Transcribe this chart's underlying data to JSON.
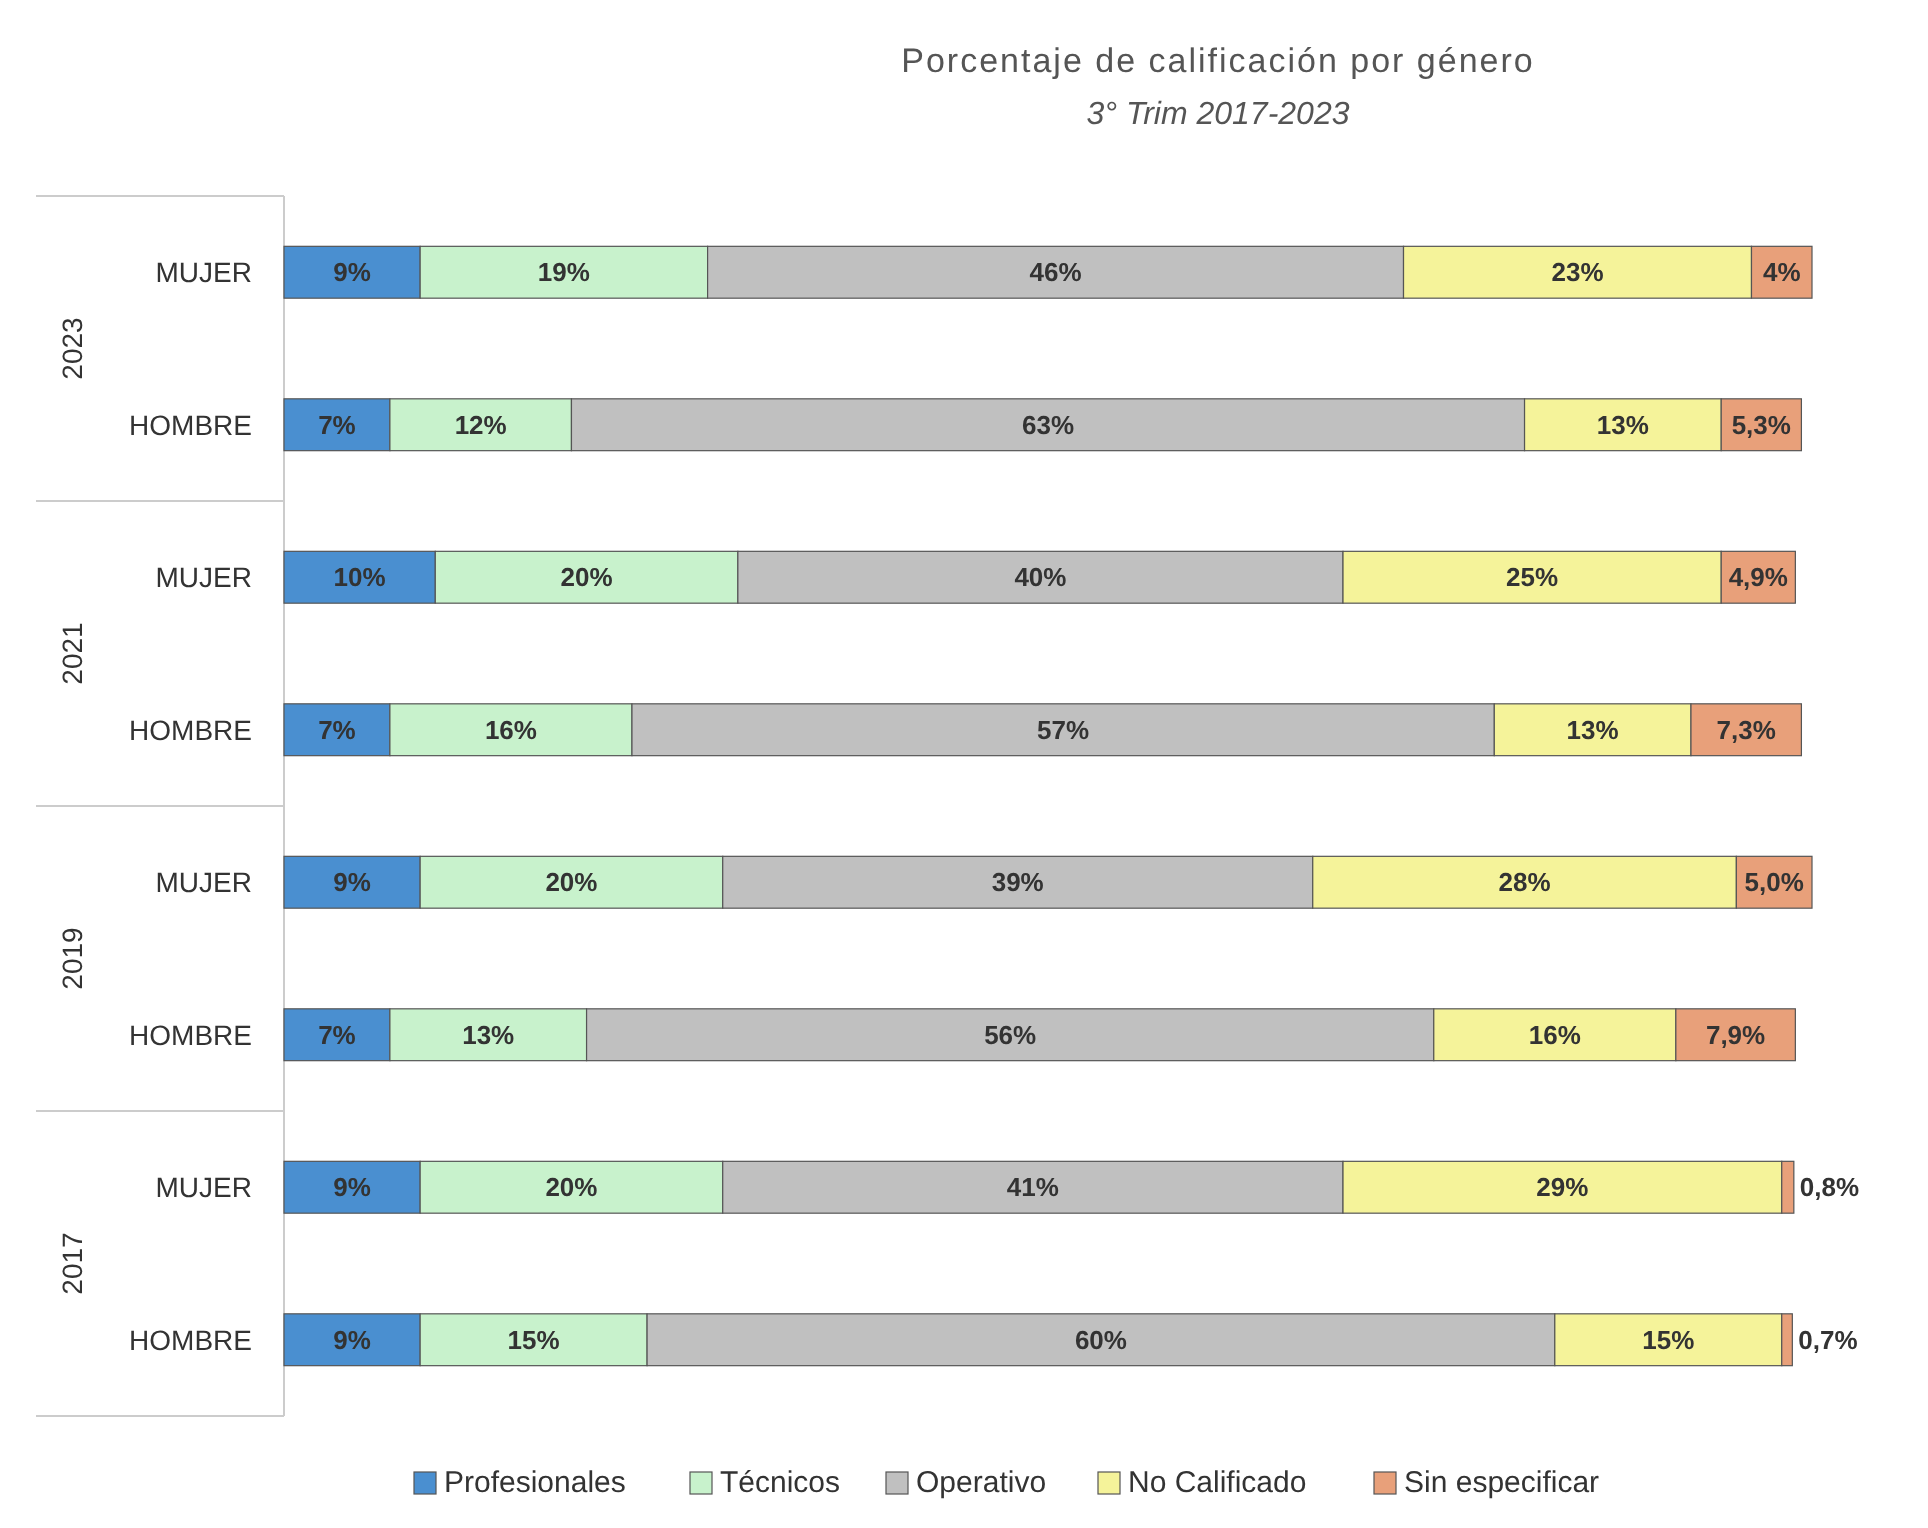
{
  "chart_data": {
    "type": "bar",
    "orientation": "horizontal",
    "stacked": true,
    "title": "Porcentaje de calificación por género",
    "subtitle": "3° Trim 2017-2023",
    "categories": [
      "MUJER",
      "HOMBRE",
      "MUJER",
      "HOMBRE",
      "MUJER",
      "HOMBRE",
      "MUJER",
      "HOMBRE"
    ],
    "annotations": [
      "2023",
      "2021",
      "2019",
      "2017"
    ],
    "series": [
      {
        "name": "Profesionales",
        "color": "#4a8fd0",
        "values": [
          9,
          7,
          10,
          7,
          9,
          7,
          9,
          9
        ],
        "value_labels": [
          "9%",
          "7%",
          "10%",
          "7%",
          "9%",
          "7%",
          "9%",
          "9%"
        ]
      },
      {
        "name": "Técnicos",
        "color": "#c8f2cc",
        "values": [
          19,
          12,
          20,
          16,
          20,
          13,
          20,
          15
        ],
        "value_labels": [
          "19%",
          "12%",
          "20%",
          "16%",
          "20%",
          "13%",
          "20%",
          "15%"
        ]
      },
      {
        "name": "Operativo",
        "color": "#c0c0c0",
        "values": [
          46,
          63,
          40,
          57,
          39,
          56,
          41,
          60
        ],
        "value_labels": [
          "46%",
          "63%",
          "40%",
          "57%",
          "39%",
          "56%",
          "41%",
          "60%"
        ]
      },
      {
        "name": "No Calificado",
        "color": "#f5f39a",
        "values": [
          23,
          13,
          25,
          13,
          28,
          16,
          29,
          15
        ],
        "value_labels": [
          "23%",
          "13%",
          "25%",
          "13%",
          "28%",
          "16%",
          "29%",
          "15%"
        ]
      },
      {
        "name": "Sin especificar",
        "color": "#e8a07a",
        "values": [
          4,
          5.3,
          4.9,
          7.3,
          5.0,
          7.9,
          0.8,
          0.7
        ],
        "value_labels": [
          "4%",
          "5,3%",
          "4,9%",
          "7,3%",
          "5,0%",
          "7,9%",
          "0,8%",
          "0,7%"
        ]
      }
    ],
    "legend": "bottom",
    "tick_labels": "y"
  }
}
